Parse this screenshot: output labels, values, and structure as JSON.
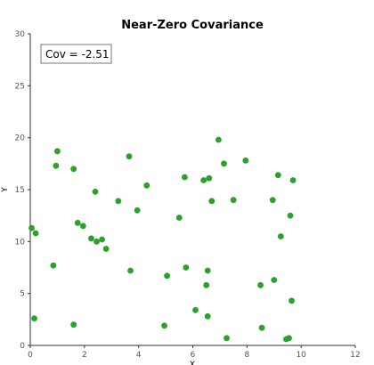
{
  "chart_data": {
    "type": "scatter",
    "title": "Near-Zero Covariance",
    "xlabel": "X",
    "ylabel": "Y",
    "xlim": [
      0,
      12
    ],
    "ylim": [
      0,
      30
    ],
    "xticks": [
      "0",
      "2",
      "4",
      "6",
      "8",
      "10",
      "12"
    ],
    "yticks": [
      "0",
      "5",
      "10",
      "15",
      "20",
      "25",
      "30"
    ],
    "grid": false,
    "annotation": "Cov = -2.51",
    "point_color": "#2ca02c",
    "points": [
      [
        0.05,
        11.3
      ],
      [
        0.2,
        10.8
      ],
      [
        0.15,
        2.6
      ],
      [
        0.85,
        7.7
      ],
      [
        0.95,
        17.3
      ],
      [
        1.0,
        18.7
      ],
      [
        1.6,
        17.0
      ],
      [
        1.6,
        2.0
      ],
      [
        1.75,
        11.8
      ],
      [
        1.95,
        11.5
      ],
      [
        2.25,
        10.3
      ],
      [
        2.4,
        14.8
      ],
      [
        2.45,
        10.0
      ],
      [
        2.65,
        10.2
      ],
      [
        2.8,
        9.3
      ],
      [
        3.25,
        13.9
      ],
      [
        3.65,
        18.2
      ],
      [
        3.7,
        7.2
      ],
      [
        3.95,
        13.0
      ],
      [
        4.3,
        15.4
      ],
      [
        4.95,
        1.9
      ],
      [
        5.05,
        6.7
      ],
      [
        5.5,
        12.3
      ],
      [
        5.7,
        16.2
      ],
      [
        5.75,
        7.5
      ],
      [
        6.1,
        3.4
      ],
      [
        6.4,
        15.9
      ],
      [
        6.5,
        5.8
      ],
      [
        6.55,
        7.2
      ],
      [
        6.55,
        2.8
      ],
      [
        6.6,
        16.1
      ],
      [
        6.7,
        13.9
      ],
      [
        6.95,
        19.8
      ],
      [
        7.15,
        17.5
      ],
      [
        7.25,
        0.7
      ],
      [
        7.5,
        14.0
      ],
      [
        7.95,
        17.8
      ],
      [
        8.5,
        5.8
      ],
      [
        8.55,
        1.7
      ],
      [
        8.95,
        14.0
      ],
      [
        9.0,
        6.3
      ],
      [
        9.15,
        16.4
      ],
      [
        9.25,
        10.5
      ],
      [
        9.45,
        0.6
      ],
      [
        9.55,
        0.7
      ],
      [
        9.6,
        12.5
      ],
      [
        9.65,
        4.3
      ],
      [
        9.7,
        15.9
      ]
    ]
  }
}
